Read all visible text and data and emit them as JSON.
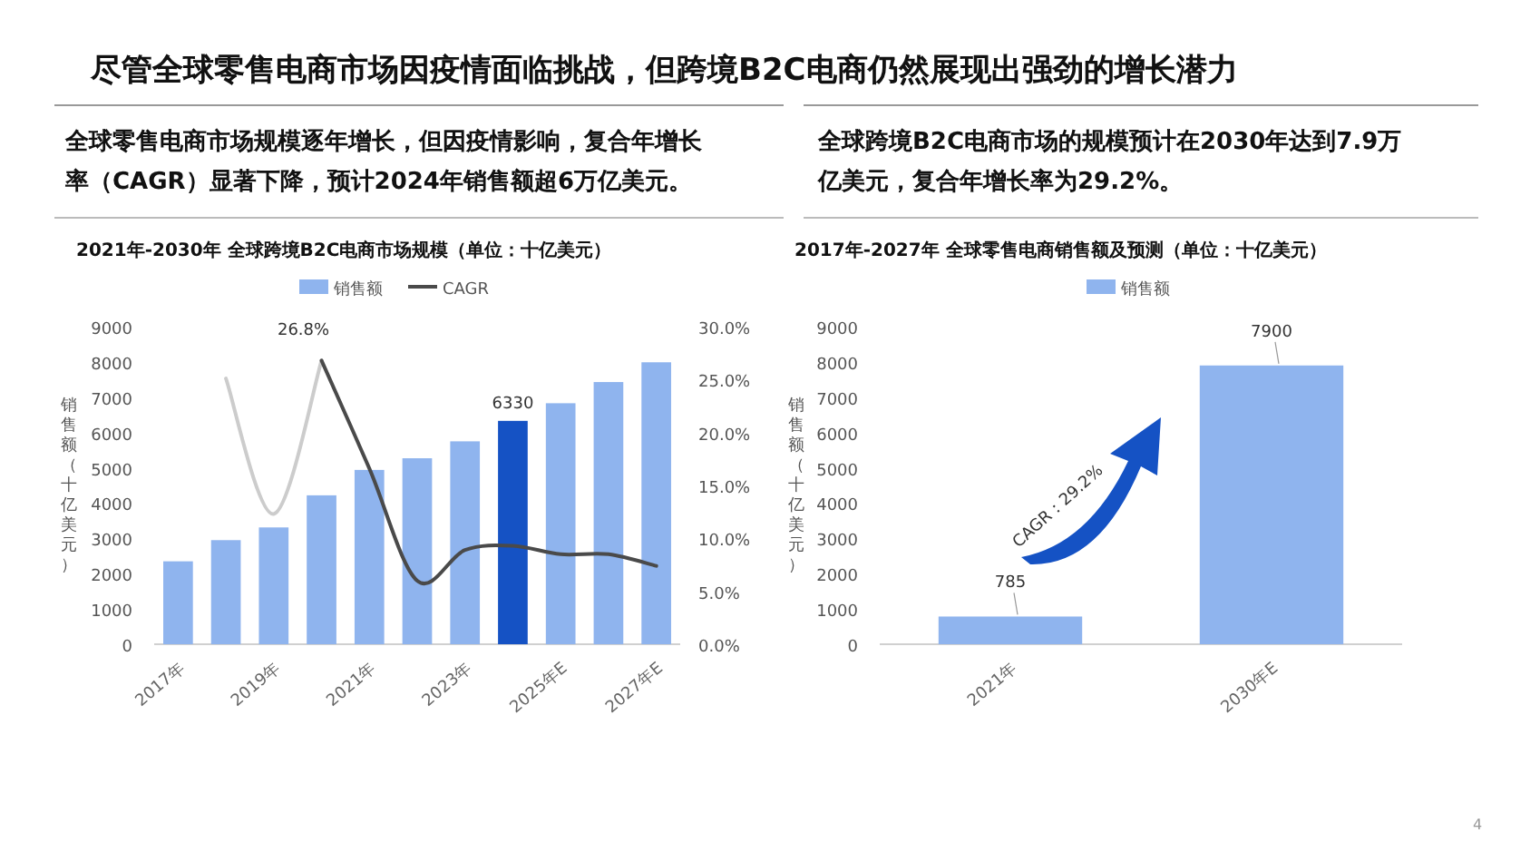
{
  "chart_data": [
    {
      "type": "other",
      "title": "尽管全球零售电商市场因疫情面临挑战，但跨境B2C电商仍然展现出强劲的增长潜力",
      "annotations": [
        "全球零售电商市场规模逐年增长，但因疫情影响，复合年增长率（CAGR）显著下降，预计2024年销售额超6万亿美元。",
        "全球跨境B2C电商市场的规模预计在2030年达到7.9万亿美元，复合年增长率为29.2%。",
        "4"
      ]
    },
    {
      "type": "bar",
      "title": "2021年-2030年 全球跨境B2C电商市场规模（单位：十亿美元）",
      "ylabel": "销售额（十亿美元）",
      "categories": [
        "2017年",
        null,
        "2019年",
        null,
        "2021年",
        null,
        "2023年",
        null,
        "2025年E",
        null,
        "2027年E"
      ],
      "legend": "top",
      "ylim": [
        0,
        9000
      ],
      "yticks": [
        0,
        1000,
        2000,
        3000,
        4000,
        5000,
        6000,
        7000,
        8000,
        9000
      ],
      "y2lim": [
        0,
        30
      ],
      "y2ticks": [
        {
          "value": 0,
          "label": "0.0%"
        },
        {
          "value": 5,
          "label": "5.0%"
        },
        {
          "value": 10,
          "label": "10.0%"
        },
        {
          "value": 15,
          "label": "15.0%"
        },
        {
          "value": 20,
          "label": "20.0%"
        },
        {
          "value": 25,
          "label": "25.0%"
        },
        {
          "value": 30,
          "label": "30.0%"
        }
      ],
      "series": [
        {
          "name": "销售额",
          "color": "#8fb4ee",
          "colors": [
            "#8fb4ee",
            "#8fb4ee",
            "#8fb4ee",
            "#8fb4ee",
            "#8fb4ee",
            "#8fb4ee",
            "#8fb4ee",
            "#1552c4",
            "#8fb4ee",
            "#8fb4ee",
            "#8fb4ee"
          ],
          "values": [
            2350,
            2950,
            3310,
            4220,
            4940,
            5270,
            5750,
            6330,
            6830,
            7430,
            7990
          ],
          "value_labels": [
            null,
            null,
            null,
            null,
            null,
            null,
            null,
            "6330",
            null,
            null,
            null
          ]
        },
        {
          "type": "line",
          "axis": "y2",
          "color": "#cccccc",
          "values": [
            null,
            25.1,
            12.3,
            26.8,
            null,
            null,
            null,
            null,
            null,
            null,
            null
          ]
        },
        {
          "name": "CAGR",
          "type": "line",
          "axis": "y2",
          "color": "#4a4a4a",
          "values": [
            null,
            null,
            null,
            26.8,
            16.6,
            6.0,
            8.9,
            9.3,
            8.5,
            8.5,
            7.4
          ],
          "value_labels": [
            null,
            null,
            null,
            "26.8%",
            null,
            null,
            null,
            null,
            null,
            null,
            null
          ]
        }
      ]
    },
    {
      "type": "bar",
      "title": "2017年-2027年 全球零售电商销售额及预测（单位：十亿美元）",
      "ylabel": "销售额（十亿美元）",
      "categories": [
        "2021年",
        "2030年E"
      ],
      "legend": "top",
      "data_labels": true,
      "ylim": [
        0,
        9000
      ],
      "yticks": [
        0,
        1000,
        2000,
        3000,
        4000,
        5000,
        6000,
        7000,
        8000,
        9000
      ],
      "series": [
        {
          "name": "销售额",
          "color": "#8fb4ee",
          "values": [
            785,
            7900
          ]
        }
      ],
      "annotations": [
        "CAGR：29.2%"
      ]
    }
  ]
}
